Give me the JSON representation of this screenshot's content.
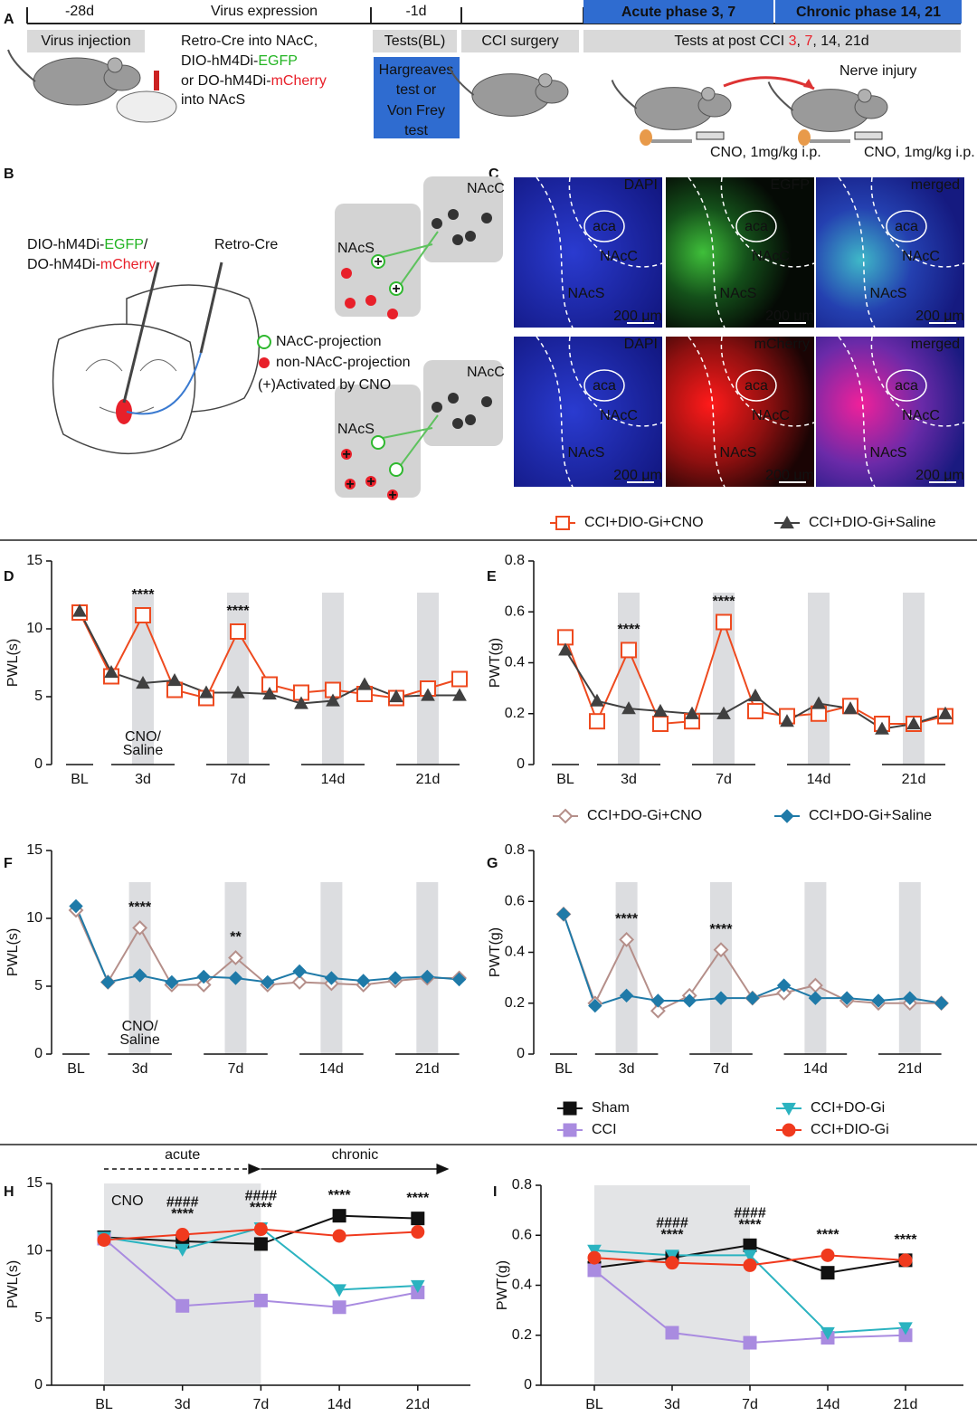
{
  "panel_labels": [
    "A",
    "B",
    "C",
    "D",
    "E",
    "F",
    "G",
    "H",
    "I"
  ],
  "panel_a": {
    "timeline": [
      "-28d",
      "Virus expression",
      "-1d"
    ],
    "phases": [
      {
        "text": "Acute phase 3, 7",
        "color": "#ff2a3a"
      },
      {
        "text": "Chronic phase 14, 21",
        "color": "#0b1a4d"
      }
    ],
    "steps": [
      "Virus injection",
      "Tests(BL)",
      "CCI surgery"
    ],
    "post_tests": [
      {
        "text": "Tests at post CCI "
      },
      {
        "text": "3",
        "color": "#e8202a"
      },
      {
        "text": ", "
      },
      {
        "text": "7",
        "color": "#e8202a"
      },
      {
        "text": ", 14, 21d"
      }
    ],
    "virus_lines": [
      [
        {
          "text": "Retro-Cre into NAcC,"
        }
      ],
      [
        {
          "text": "DIO-hM4Di-"
        },
        {
          "text": "EGFP",
          "color": "#22b422"
        }
      ],
      [
        {
          "text": "or DO-hM4Di-"
        },
        {
          "text": "mCherry",
          "color": "#e8202a"
        }
      ],
      [
        {
          "text": "into NAcS"
        }
      ]
    ],
    "test_box": [
      "Hargreaves",
      "test or",
      "Von Frey",
      "test"
    ],
    "nerve_injury": "Nerve injury",
    "cno_dose": "CNO, 1mg/kg i.p."
  },
  "panel_b": {
    "virus_lines": [
      [
        {
          "text": "DIO-hM4Di-"
        },
        {
          "text": "EGFP",
          "color": "#22b422"
        },
        {
          "text": "/"
        }
      ],
      [
        {
          "text": "DO-hM4Di-"
        },
        {
          "text": "mCherry",
          "color": "#e8202a"
        }
      ]
    ],
    "retro": "Retro-Cre",
    "regions": [
      "NAcC",
      "NAcS"
    ],
    "legend": [
      "NAcC-projection",
      "non-NAcC-projection",
      "(+)Activated by CNO"
    ],
    "plus": "+"
  },
  "panel_c": {
    "channels": [
      {
        "text": "DAPI",
        "color": "#ffffff"
      },
      {
        "text": "EGFP",
        "color": "#39e639"
      },
      {
        "text": "merged",
        "color": "#f0c419"
      },
      {
        "text": "DAPI",
        "color": "#ffffff"
      },
      {
        "text": "mCherry",
        "color": "#ff4040"
      },
      {
        "text": "merged",
        "color": "#f0c419"
      }
    ],
    "regions": [
      "aca",
      "NAcC",
      "NAcS"
    ],
    "scale_bar": "200 μm"
  },
  "chart_data": [
    {
      "type": "line",
      "ylabel": "PWL(s)",
      "categories": [
        "BL",
        null,
        "3d",
        null,
        null,
        "7d",
        null,
        null,
        "14d",
        null,
        null,
        "21d",
        null
      ],
      "ylim": [
        0,
        15
      ],
      "yticks": [
        0,
        5,
        10,
        15
      ],
      "shaded_categories": [
        "3d",
        "7d",
        "14d",
        "21d"
      ],
      "series": [
        {
          "name": "CCI+DIO-Gi+CNO",
          "color": "#ee4a1f",
          "marker": "square",
          "hollow": true,
          "values": [
            11.2,
            6.5,
            11.0,
            5.5,
            4.9,
            9.8,
            5.9,
            5.3,
            5.5,
            5.2,
            4.9,
            5.6,
            6.3
          ]
        },
        {
          "name": "CCI+DIO-Gi+Saline",
          "color": "#404040",
          "marker": "triangle",
          "hollow": false,
          "values": [
            11.3,
            6.8,
            6.0,
            6.2,
            5.3,
            5.3,
            5.2,
            4.5,
            4.7,
            5.9,
            5.0,
            5.1,
            5.1
          ]
        }
      ],
      "annotations": [
        {
          "lines": [
            "****"
          ],
          "at": "3d"
        },
        {
          "lines": [
            "****"
          ],
          "at": "7d"
        },
        {
          "lines": [
            "CNO/",
            "Saline"
          ],
          "at": "3d",
          "position": "bottom",
          "color": "#2a5bd7"
        }
      ]
    },
    {
      "type": "line",
      "ylabel": "PWT(g)",
      "categories": [
        "BL",
        null,
        "3d",
        null,
        null,
        "7d",
        null,
        null,
        "14d",
        null,
        null,
        "21d",
        null
      ],
      "ylim": [
        0,
        0.8
      ],
      "yticks": [
        0,
        0.2,
        0.4,
        0.6,
        0.8
      ],
      "shaded_categories": [
        "3d",
        "7d",
        "14d",
        "21d"
      ],
      "series": [
        {
          "color": "#ee4a1f",
          "marker": "square",
          "hollow": true,
          "values": [
            0.5,
            0.17,
            0.45,
            0.16,
            0.17,
            0.56,
            0.21,
            0.19,
            0.2,
            0.23,
            0.16,
            0.16,
            0.19
          ]
        },
        {
          "color": "#404040",
          "marker": "triangle",
          "hollow": false,
          "values": [
            0.45,
            0.25,
            0.22,
            0.21,
            0.2,
            0.2,
            0.27,
            0.17,
            0.24,
            0.22,
            0.14,
            0.16,
            0.2
          ]
        }
      ],
      "annotations": [
        {
          "lines": [
            "****"
          ],
          "at": "3d"
        },
        {
          "lines": [
            "****"
          ],
          "at": "7d"
        }
      ]
    },
    {
      "type": "line",
      "ylabel": "PWL(s)",
      "categories": [
        "BL",
        null,
        "3d",
        null,
        null,
        "7d",
        null,
        null,
        "14d",
        null,
        null,
        "21d",
        null
      ],
      "ylim": [
        0,
        15
      ],
      "yticks": [
        0,
        5,
        10,
        15
      ],
      "shaded_categories": [
        "3d",
        "7d",
        "14d",
        "21d"
      ],
      "series": [
        {
          "name": "CCI+DO-Gi+CNO",
          "color": "#b58f8a",
          "marker": "diamond",
          "hollow": true,
          "values": [
            10.6,
            5.3,
            9.3,
            5.1,
            5.1,
            7.1,
            5.1,
            5.3,
            5.2,
            5.1,
            5.4,
            5.6,
            5.6
          ]
        },
        {
          "name": "CCI+DO-Gi+Saline",
          "color": "#1f7aa8",
          "marker": "diamond",
          "hollow": false,
          "values": [
            10.9,
            5.3,
            5.8,
            5.3,
            5.7,
            5.6,
            5.3,
            6.1,
            5.6,
            5.4,
            5.6,
            5.7,
            5.5
          ]
        }
      ],
      "annotations": [
        {
          "lines": [
            "****"
          ],
          "at": "3d"
        },
        {
          "lines": [
            "**"
          ],
          "at": "7d"
        },
        {
          "lines": [
            "CNO/",
            "Saline"
          ],
          "at": "3d",
          "position": "bottom",
          "color": "#2a5bd7"
        }
      ]
    },
    {
      "type": "line",
      "ylabel": "PWT(g)",
      "categories": [
        "BL",
        null,
        "3d",
        null,
        null,
        "7d",
        null,
        null,
        "14d",
        null,
        null,
        "21d",
        null
      ],
      "ylim": [
        0,
        0.8
      ],
      "yticks": [
        0,
        0.2,
        0.4,
        0.6,
        0.8
      ],
      "shaded_categories": [
        "3d",
        "7d",
        "14d",
        "21d"
      ],
      "series": [
        {
          "color": "#b58f8a",
          "marker": "diamond",
          "hollow": true,
          "values": [
            0.55,
            0.2,
            0.45,
            0.17,
            0.23,
            0.41,
            0.22,
            0.24,
            0.27,
            0.21,
            0.2,
            0.2,
            0.2
          ]
        },
        {
          "color": "#1f7aa8",
          "marker": "diamond",
          "hollow": false,
          "values": [
            0.55,
            0.19,
            0.23,
            0.21,
            0.21,
            0.22,
            0.22,
            0.27,
            0.22,
            0.22,
            0.21,
            0.22,
            0.2
          ]
        }
      ],
      "annotations": [
        {
          "lines": [
            "****"
          ],
          "at": "3d"
        },
        {
          "lines": [
            "****"
          ],
          "at": "7d"
        }
      ]
    },
    {
      "type": "line",
      "ylabel": "PWL(s)",
      "categories": [
        "BL",
        "3d",
        "7d",
        "14d",
        "21d"
      ],
      "ylim": [
        0,
        15
      ],
      "yticks": [
        0,
        5,
        10,
        15
      ],
      "shaded": {
        "from": "BL",
        "to": "7d",
        "label": "CNO"
      },
      "phases": [
        {
          "text": "acute",
          "style": "dashed",
          "from": "BL",
          "to": "7d"
        },
        {
          "text": "chronic",
          "style": "solid",
          "from": "7d",
          "to": "21d"
        }
      ],
      "series": [
        {
          "name": "Sham",
          "color": "#111111",
          "marker": "square",
          "hollow": false,
          "values": [
            11.0,
            10.7,
            10.5,
            12.6,
            12.4
          ]
        },
        {
          "name": "CCI",
          "color": "#a98be0",
          "marker": "square",
          "hollow": false,
          "values": [
            10.9,
            5.9,
            6.3,
            5.8,
            6.9
          ]
        },
        {
          "name": "CCI+DO-Gi",
          "color": "#2bb3c0",
          "marker": "triangle-down",
          "hollow": false,
          "values": [
            11.0,
            10.1,
            11.7,
            7.1,
            7.4
          ]
        },
        {
          "name": "CCI+DIO-Gi",
          "color": "#f03a1e",
          "marker": "circle",
          "hollow": false,
          "values": [
            10.8,
            11.2,
            11.6,
            11.1,
            11.4
          ]
        }
      ],
      "annotations": [
        {
          "lines": [
            "####",
            "****"
          ],
          "at": "3d"
        },
        {
          "lines": [
            "####",
            "****"
          ],
          "at": "7d"
        },
        {
          "lines": [
            "****"
          ],
          "at": "14d"
        },
        {
          "lines": [
            "****"
          ],
          "at": "21d"
        }
      ]
    },
    {
      "type": "line",
      "ylabel": "PWT(g)",
      "categories": [
        "BL",
        "3d",
        "7d",
        "14d",
        "21d"
      ],
      "ylim": [
        0,
        0.8
      ],
      "yticks": [
        0,
        0.2,
        0.4,
        0.6,
        0.8
      ],
      "shaded": {
        "from": "BL",
        "to": "7d"
      },
      "series": [
        {
          "color": "#111111",
          "marker": "square",
          "hollow": false,
          "values": [
            0.47,
            0.51,
            0.56,
            0.45,
            0.5
          ]
        },
        {
          "color": "#a98be0",
          "marker": "square",
          "hollow": false,
          "values": [
            0.46,
            0.21,
            0.17,
            0.19,
            0.2
          ]
        },
        {
          "color": "#2bb3c0",
          "marker": "triangle-down",
          "hollow": false,
          "values": [
            0.54,
            0.52,
            0.52,
            0.21,
            0.23
          ]
        },
        {
          "color": "#f03a1e",
          "marker": "circle",
          "hollow": false,
          "values": [
            0.51,
            0.49,
            0.48,
            0.52,
            0.5
          ]
        }
      ],
      "annotations": [
        {
          "lines": [
            "####",
            "****"
          ],
          "at": "3d"
        },
        {
          "lines": [
            "####",
            "****"
          ],
          "at": "7d"
        },
        {
          "lines": [
            "****"
          ],
          "at": "14d"
        },
        {
          "lines": [
            "****"
          ],
          "at": "21d"
        }
      ]
    }
  ]
}
